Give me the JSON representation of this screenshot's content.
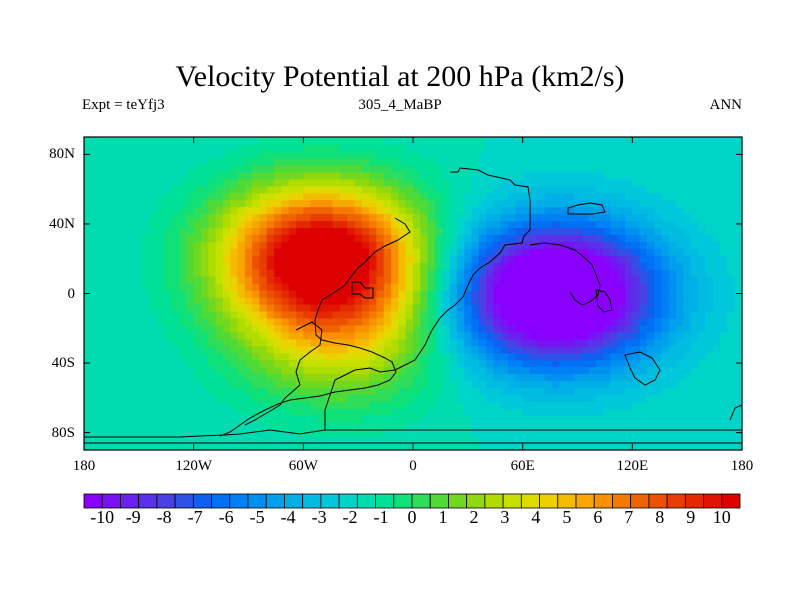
{
  "chart_data": {
    "type": "heatmap",
    "title": "Velocity Potential at 200 hPa (km2/s)",
    "subtitle_left": "Expt = teYfj3",
    "subtitle_center": "305_4_MaBP",
    "subtitle_right": "ANN",
    "xlim": [
      -180,
      180
    ],
    "ylim": [
      -90,
      90
    ],
    "x_ticks": [
      {
        "value": -180,
        "label": "180"
      },
      {
        "value": -120,
        "label": "120W"
      },
      {
        "value": -60,
        "label": "60W"
      },
      {
        "value": 0,
        "label": "0"
      },
      {
        "value": 60,
        "label": "60E"
      },
      {
        "value": 120,
        "label": "120E"
      },
      {
        "value": 180,
        "label": "180"
      }
    ],
    "y_ticks": [
      {
        "value": 80,
        "label": "80N"
      },
      {
        "value": 40,
        "label": "40N"
      },
      {
        "value": 0,
        "label": "0"
      },
      {
        "value": -40,
        "label": "40S"
      },
      {
        "value": -80,
        "label": "80S"
      }
    ],
    "colorbar": {
      "min": -10.5,
      "max": 10.5,
      "step": 0.5,
      "tick_labels": [
        "-10",
        "-9",
        "-8",
        "-7",
        "-6",
        "-5",
        "-4",
        "-3",
        "-2",
        "-1",
        "0",
        "1",
        "2",
        "3",
        "4",
        "5",
        "6",
        "7",
        "8",
        "9",
        "10"
      ],
      "colors": [
        "#8a00ff",
        "#7a10f5",
        "#6a20ee",
        "#5a30e8",
        "#4a40e4",
        "#3050e8",
        "#1060f0",
        "#0070f5",
        "#0080f5",
        "#0090f0",
        "#00a0ec",
        "#00afe6",
        "#00bce0",
        "#00c8da",
        "#00d4c8",
        "#00dcb0",
        "#00e096",
        "#10e07a",
        "#30dd5a",
        "#50da38",
        "#70d820",
        "#90d810",
        "#b0dc00",
        "#c8e000",
        "#dcdc00",
        "#ecd000",
        "#f4bc00",
        "#f8a600",
        "#f89000",
        "#f47a00",
        "#f06400",
        "#ec5000",
        "#e83c00",
        "#e42800",
        "#e01400",
        "#dc0000"
      ]
    },
    "sources": [
      {
        "name": "divergent-maximum",
        "lon": -50,
        "lat": 22,
        "amplitude": 11.5
      },
      {
        "name": "divergent-tongue",
        "lon": -40,
        "lat": -25,
        "amplitude": 4.0
      },
      {
        "name": "convergent-minimum",
        "lon": 78,
        "lat": 0,
        "amplitude": -11.0
      }
    ],
    "background": -3.0
  }
}
